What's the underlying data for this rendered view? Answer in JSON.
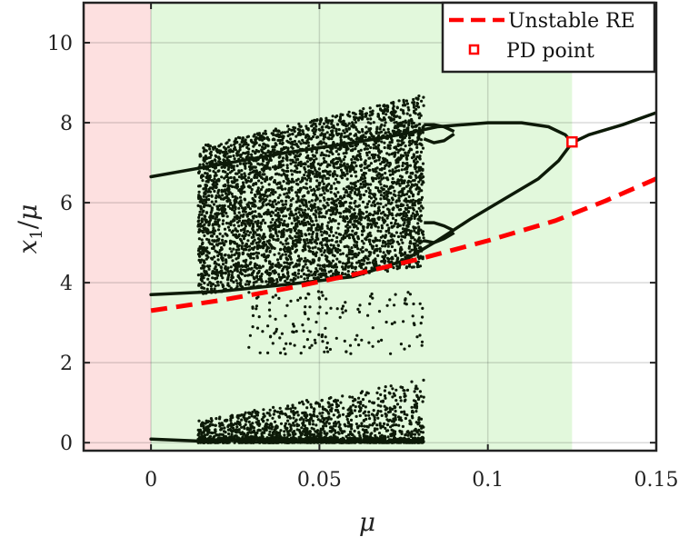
{
  "chart_data": {
    "type": "scatter",
    "title": "",
    "xlabel": "μ",
    "ylabel_parts": {
      "var": "x",
      "sub": "1",
      "den": "μ"
    },
    "xlim": [
      -0.02,
      0.15
    ],
    "ylim": [
      -0.2,
      11
    ],
    "x_ticks": [
      0,
      0.05,
      0.1,
      0.15
    ],
    "x_tick_labels": [
      "0",
      "0.05",
      "0.1",
      "0.15"
    ],
    "y_ticks": [
      0,
      2,
      4,
      6,
      8,
      10
    ],
    "y_tick_labels": [
      "0",
      "2",
      "4",
      "6",
      "8",
      "10"
    ],
    "grid": true,
    "legend_position": "top-right",
    "regions": [
      {
        "x0": -0.02,
        "x1": 0.0,
        "color": "#fde0e0"
      },
      {
        "x0": 0.0,
        "x1": 0.125,
        "color": "#e2f8dc"
      }
    ],
    "stable_branches": [
      {
        "x": [
          0.0,
          0.02,
          0.04,
          0.06,
          0.075,
          0.085,
          0.1,
          0.11,
          0.118,
          0.123,
          0.125
        ],
        "y": [
          6.65,
          6.95,
          7.25,
          7.5,
          7.72,
          7.9,
          8.0,
          8.0,
          7.9,
          7.7,
          7.5
        ]
      },
      {
        "x": [
          0.0,
          0.02,
          0.04,
          0.06,
          0.075,
          0.085,
          0.095,
          0.105,
          0.115,
          0.121,
          0.125
        ],
        "y": [
          3.7,
          3.78,
          3.95,
          4.15,
          4.55,
          5.05,
          5.6,
          6.1,
          6.6,
          7.05,
          7.5
        ]
      },
      {
        "x": [
          0.125,
          0.13,
          0.14,
          0.15
        ],
        "y": [
          7.5,
          7.7,
          7.95,
          8.25
        ]
      },
      {
        "x": [
          0.0,
          0.014
        ],
        "y": [
          0.09,
          0.04
        ]
      }
    ],
    "period_doubling_bubbles": [
      {
        "x": [
          0.081,
          0.084,
          0.087,
          0.09
        ],
        "upper": [
          7.95,
          7.95,
          7.9,
          7.78
        ],
        "lower": [
          7.6,
          7.5,
          7.55,
          7.72
        ]
      },
      {
        "x": [
          0.081,
          0.084,
          0.087,
          0.09
        ],
        "upper": [
          5.5,
          5.5,
          5.42,
          5.3
        ],
        "lower": [
          5.05,
          5.0,
          5.1,
          5.25
        ]
      }
    ],
    "chaotic_scatter": {
      "x_range": [
        0.014,
        0.081
      ],
      "upper_band": {
        "y_bottom_at_start": 3.7,
        "y_bottom_at_end": 4.4,
        "y_top_at_start": 7.4,
        "y_top_at_end": 8.7
      },
      "lower_band": {
        "y_range": [
          0.0,
          1.6
        ]
      }
    },
    "series": [
      {
        "name": "Unstable RE",
        "style": "dashed",
        "color": "#ff0000",
        "x": [
          0.0,
          0.02,
          0.04,
          0.06,
          0.08,
          0.1,
          0.12,
          0.135,
          0.15
        ],
        "y": [
          3.3,
          3.55,
          3.85,
          4.2,
          4.6,
          5.05,
          5.55,
          6.05,
          6.6
        ]
      },
      {
        "name": "PD point",
        "style": "marker-square",
        "color": "#ff0000",
        "x": [
          0.125
        ],
        "y": [
          7.52
        ]
      }
    ]
  }
}
